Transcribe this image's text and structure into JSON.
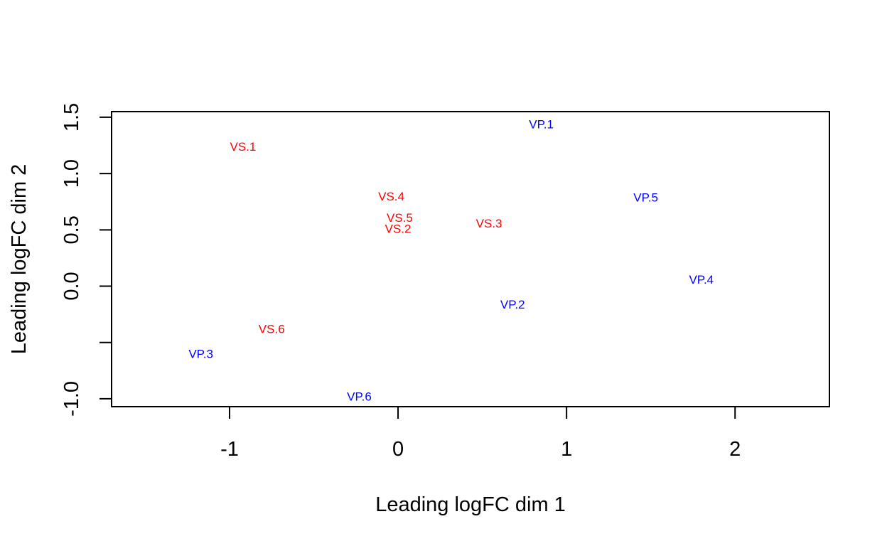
{
  "chart_data": {
    "type": "scatter",
    "title": "",
    "xlabel": "Leading logFC dim 1",
    "ylabel": "Leading logFC dim 2",
    "xlim": [
      -1.7,
      2.56
    ],
    "ylim": [
      -1.07,
      1.55
    ],
    "x_ticks": [
      -1,
      0,
      1,
      2
    ],
    "x_tick_labels": [
      "-1",
      "0",
      "1",
      "2"
    ],
    "y_ticks": [
      -1.0,
      -0.5,
      0.0,
      0.5,
      1.0,
      1.5
    ],
    "y_tick_labels": [
      "-1.0",
      "",
      "0.0",
      "0.5",
      "1.0",
      "1.5"
    ],
    "grid": false,
    "legend": "none",
    "colors": {
      "VS": "#ff0000",
      "VP": "#0000ff"
    },
    "points": [
      {
        "label": "VP.1",
        "group": "VP",
        "x": 0.85,
        "y": 1.44
      },
      {
        "label": "VS.1",
        "group": "VS",
        "x": -0.92,
        "y": 1.24
      },
      {
        "label": "VS.4",
        "group": "VS",
        "x": -0.04,
        "y": 0.8
      },
      {
        "label": "VP.5",
        "group": "VP",
        "x": 1.47,
        "y": 0.79
      },
      {
        "label": "VS.5",
        "group": "VS",
        "x": 0.01,
        "y": 0.61
      },
      {
        "label": "VS.3",
        "group": "VS",
        "x": 0.54,
        "y": 0.56
      },
      {
        "label": "VS.2",
        "group": "VS",
        "x": 0.0,
        "y": 0.51
      },
      {
        "label": "VP.4",
        "group": "VP",
        "x": 1.8,
        "y": 0.06
      },
      {
        "label": "VP.2",
        "group": "VP",
        "x": 0.68,
        "y": -0.16
      },
      {
        "label": "VS.6",
        "group": "VS",
        "x": -0.75,
        "y": -0.38
      },
      {
        "label": "VP.3",
        "group": "VP",
        "x": -1.17,
        "y": -0.6
      },
      {
        "label": "VP.6",
        "group": "VP",
        "x": -0.23,
        "y": -0.98
      }
    ]
  }
}
